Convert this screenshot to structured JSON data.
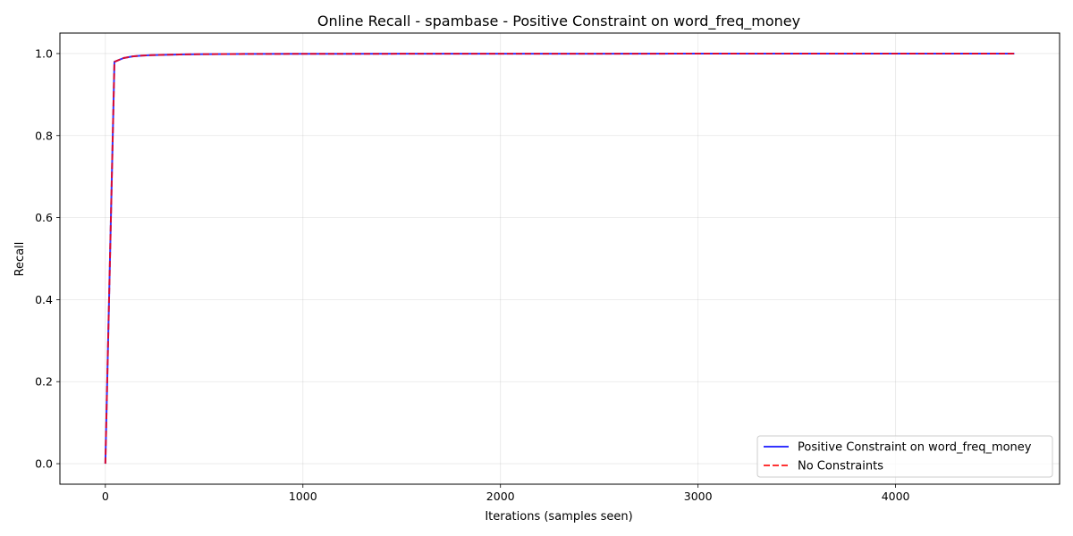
{
  "chart_data": {
    "type": "line",
    "title": "Online Recall - spambase - Positive Constraint on word_freq_money",
    "xlabel": "Iterations (samples seen)",
    "ylabel": "Recall",
    "xlim": [
      -230,
      4830
    ],
    "ylim": [
      -0.05,
      1.05
    ],
    "xticks": [
      0,
      1000,
      2000,
      3000,
      4000
    ],
    "xtick_labels": [
      "0",
      "1000",
      "2000",
      "3000",
      "4000"
    ],
    "yticks": [
      0.0,
      0.2,
      0.4,
      0.6,
      0.8,
      1.0
    ],
    "ytick_labels": [
      "0.0",
      "0.2",
      "0.4",
      "0.6",
      "0.8",
      "1.0"
    ],
    "grid": true,
    "legend_position": "lower-right",
    "series": [
      {
        "name": "Positive Constraint on word_freq_money",
        "color": "#0000ff",
        "style": "solid",
        "x": [
          0,
          46,
          92,
          138,
          184,
          230,
          300,
          400,
          500,
          700,
          1000,
          1500,
          2000,
          2500,
          3000,
          3500,
          4000,
          4601
        ],
        "y": [
          0.0,
          0.98,
          0.989,
          0.993,
          0.995,
          0.996,
          0.997,
          0.998,
          0.9985,
          0.999,
          0.9993,
          0.9995,
          0.9996,
          0.9997,
          0.9998,
          0.9998,
          0.9999,
          0.9999
        ]
      },
      {
        "name": "No Constraints",
        "color": "#ff0000",
        "style": "dashed",
        "x": [
          0,
          46,
          92,
          138,
          184,
          230,
          300,
          400,
          500,
          700,
          1000,
          1500,
          2000,
          2500,
          3000,
          3500,
          4000,
          4601
        ],
        "y": [
          0.0,
          0.98,
          0.989,
          0.993,
          0.995,
          0.996,
          0.997,
          0.998,
          0.9985,
          0.999,
          0.9993,
          0.9995,
          0.9996,
          0.9997,
          0.9998,
          0.9998,
          0.9999,
          0.9999
        ]
      }
    ]
  }
}
